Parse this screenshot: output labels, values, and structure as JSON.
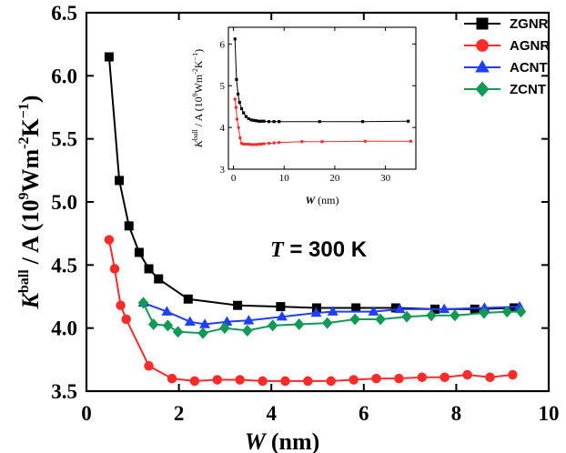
{
  "chart_data": [
    {
      "id": "main",
      "type": "line",
      "xlabel_var": "W",
      "xlabel_unit": "(nm)",
      "ylabel_K": "K",
      "ylabel_sup": "ball",
      "ylabel_rest": "/ A (10",
      "ylabel_exp": "9",
      "ylabel_unit": "Wm",
      "ylabel_exp2": "-2",
      "ylabel_unitK": "K",
      "ylabel_exp3": "−1",
      "ylabel_close": ")",
      "xlim": [
        0,
        10
      ],
      "ylim": [
        3.5,
        6.5
      ],
      "xticks": [
        0,
        2,
        4,
        6,
        8,
        10
      ],
      "xtick_labels": [
        "0",
        "2",
        "4",
        "6",
        "8",
        "10"
      ],
      "yticks": [
        3.5,
        4.0,
        4.5,
        5.0,
        5.5,
        6.0,
        6.5
      ],
      "ytick_labels": [
        "3.5",
        "4.0",
        "4.5",
        "5.0",
        "5.5",
        "6.0",
        "6.5"
      ],
      "annotation_var": "T",
      "annotation_rest": " = 300 K",
      "legend": [
        "ZGNR",
        "AGNR",
        "ACNT",
        "ZCNT"
      ],
      "series": [
        {
          "name": "ZGNR",
          "color": "#000000",
          "marker": "square",
          "x": [
            0.49,
            0.71,
            0.92,
            1.14,
            1.35,
            1.56,
            2.2,
            3.27,
            4.2,
            4.98,
            5.83,
            6.69,
            7.54,
            8.4,
            9.25
          ],
          "y": [
            6.15,
            5.17,
            4.81,
            4.6,
            4.47,
            4.39,
            4.23,
            4.18,
            4.17,
            4.16,
            4.16,
            4.16,
            4.15,
            4.15,
            4.16
          ]
        },
        {
          "name": "AGNR",
          "color": "#ff2a2a",
          "marker": "circle",
          "x": [
            0.49,
            0.61,
            0.74,
            0.86,
            1.35,
            1.85,
            2.34,
            2.83,
            3.32,
            3.81,
            4.3,
            4.79,
            5.29,
            5.78,
            6.27,
            6.76,
            7.26,
            7.75,
            8.24,
            8.73,
            9.22
          ],
          "y": [
            4.7,
            4.47,
            4.18,
            4.07,
            3.7,
            3.6,
            3.58,
            3.59,
            3.59,
            3.58,
            3.58,
            3.58,
            3.58,
            3.59,
            3.6,
            3.6,
            3.61,
            3.61,
            3.63,
            3.61,
            3.63
          ]
        },
        {
          "name": "ACNT",
          "color": "#1f3fff",
          "marker": "triangle",
          "x": [
            1.23,
            1.74,
            2.24,
            2.56,
            3.04,
            3.51,
            4.23,
            4.97,
            5.33,
            6.21,
            6.78,
            7.74,
            8.61,
            9.37
          ],
          "y": [
            4.2,
            4.13,
            4.05,
            4.03,
            4.05,
            4.06,
            4.09,
            4.12,
            4.13,
            4.13,
            4.15,
            4.15,
            4.16,
            4.17
          ]
        },
        {
          "name": "ZCNT",
          "color": "#119955",
          "marker": "diamond",
          "x": [
            1.23,
            1.45,
            1.76,
            1.98,
            2.52,
            2.99,
            3.48,
            4.03,
            4.6,
            5.21,
            5.81,
            6.36,
            6.93,
            7.46,
            7.97,
            8.6,
            9.1,
            9.4
          ],
          "y": [
            4.2,
            4.03,
            4.02,
            3.97,
            3.96,
            4.0,
            3.98,
            4.02,
            4.03,
            4.04,
            4.07,
            4.07,
            4.09,
            4.1,
            4.1,
            4.12,
            4.13,
            4.13
          ]
        }
      ]
    },
    {
      "id": "inset",
      "type": "line",
      "xlabel_var": "W",
      "xlabel_unit": "(nm)",
      "ylabel_K": "K",
      "ylabel_sup": "ball",
      "ylabel_rest": "/ A (10",
      "ylabel_exp": "9",
      "ylabel_unit": "Wm",
      "ylabel_exp2": "-2",
      "ylabel_unitK": "K",
      "ylabel_exp3": "−1",
      "ylabel_close": ")",
      "xlim": [
        -1,
        36
      ],
      "ylim": [
        3,
        6.4
      ],
      "xticks": [
        0,
        10,
        20,
        30
      ],
      "xtick_labels": [
        "0",
        "10",
        "20",
        "30"
      ],
      "yticks": [
        3,
        4,
        5,
        6
      ],
      "ytick_labels": [
        "3",
        "4",
        "5",
        "6"
      ],
      "series": [
        {
          "name": "ZGNR",
          "color": "#000000",
          "marker": "square",
          "x": [
            0.3,
            0.6,
            0.9,
            1.2,
            1.6,
            2.0,
            2.5,
            3.0,
            3.5,
            4.0,
            4.5,
            5.0,
            5.5,
            6.0,
            7.0,
            8.0,
            9.0,
            17.0,
            25.5,
            34.5
          ],
          "y": [
            6.12,
            5.15,
            4.8,
            4.6,
            4.45,
            4.35,
            4.26,
            4.21,
            4.18,
            4.17,
            4.16,
            4.15,
            4.15,
            4.15,
            4.14,
            4.14,
            4.14,
            4.14,
            4.14,
            4.15
          ]
        },
        {
          "name": "AGNR",
          "color": "#ff2a2a",
          "marker": "circle",
          "x": [
            0.3,
            0.5,
            0.7,
            1.0,
            1.3,
            1.6,
            2.0,
            2.5,
            3.0,
            3.5,
            4.0,
            4.5,
            5.0,
            5.5,
            6.0,
            7.0,
            8.0,
            9.0,
            13.5,
            17.5,
            26.0,
            35.0
          ],
          "y": [
            4.68,
            4.48,
            4.2,
            4.0,
            3.75,
            3.62,
            3.6,
            3.6,
            3.6,
            3.59,
            3.59,
            3.59,
            3.6,
            3.6,
            3.61,
            3.62,
            3.63,
            3.64,
            3.66,
            3.66,
            3.67,
            3.67
          ]
        }
      ]
    }
  ]
}
